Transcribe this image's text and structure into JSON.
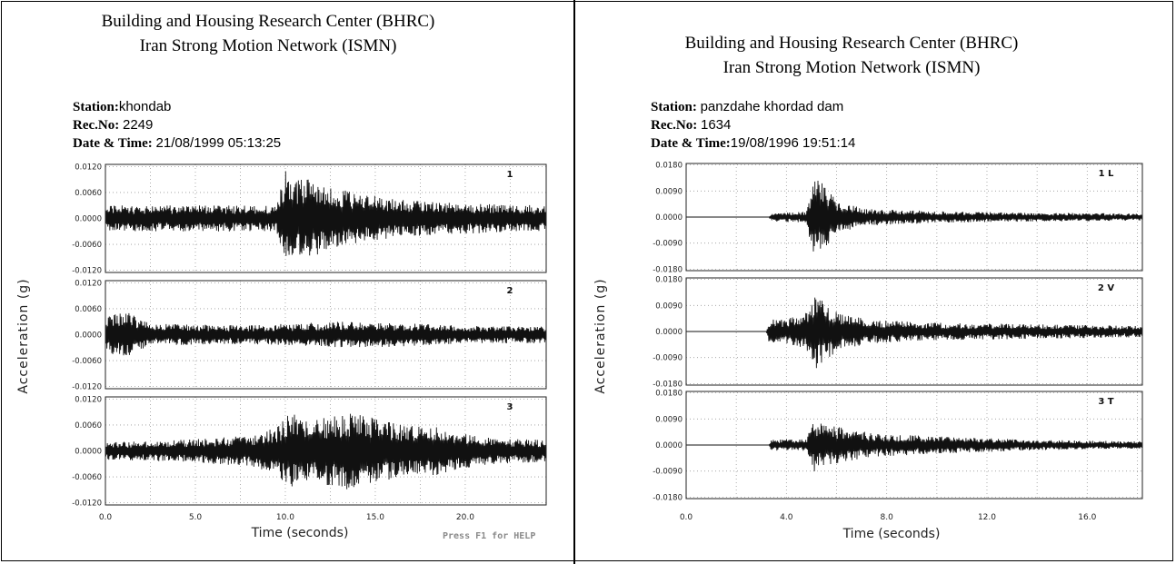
{
  "left": {
    "title_line1": "Building and Housing Research Center (BHRC)",
    "title_line2": "Iran Strong Motion Network (ISMN)",
    "station_label": "Station:",
    "station_value": "khondab",
    "recno_label": "Rec.No:",
    "recno_value": "2249",
    "datetime_label": "Date & Time:",
    "datetime_value": "21/08/1999  05:13:25",
    "help_text": "Press F1 for HELP"
  },
  "right": {
    "title_line1": "Building and Housing Research Center (BHRC)",
    "title_line2": "Iran Strong Motion Network (ISMN)",
    "station_label": "Station:",
    "station_value": "panzdahe khordad dam",
    "recno_label": "Rec.No:",
    "recno_value": "1634",
    "datetime_label": "Date & Time:",
    "datetime_value": "19/08/1996  19:51:14"
  },
  "chart_data": [
    {
      "type": "line",
      "xlabel": "Time (seconds)",
      "ylabel": "Acceleration (g)",
      "xlim": [
        0,
        24.5
      ],
      "xticks": [
        "0.0",
        "5.0",
        "10.0",
        "15.0",
        "20.0"
      ],
      "xtick_values": [
        0,
        5,
        10,
        15,
        20
      ],
      "yticks": [
        "0.0120",
        "0.0060",
        "0.0000",
        "-0.0060",
        "-0.0120"
      ],
      "ylim": [
        -0.0125,
        0.0125
      ],
      "grid": true,
      "series": [
        {
          "name": "1",
          "envelope": [
            [
              0,
              0.003
            ],
            [
              3,
              0.003
            ],
            [
              8,
              0.003
            ],
            [
              9.5,
              0.003
            ],
            [
              10,
              0.011
            ],
            [
              10.5,
              0.009
            ],
            [
              11.5,
              0.009
            ],
            [
              12.5,
              0.007
            ],
            [
              14,
              0.006
            ],
            [
              16,
              0.0045
            ],
            [
              20,
              0.0035
            ],
            [
              24.5,
              0.003
            ]
          ]
        },
        {
          "name": "2",
          "envelope": [
            [
              0,
              0.004
            ],
            [
              0.5,
              0.005
            ],
            [
              1.3,
              0.005
            ],
            [
              2.5,
              0.0025
            ],
            [
              8,
              0.0022
            ],
            [
              10,
              0.0025
            ],
            [
              13,
              0.003
            ],
            [
              16,
              0.0028
            ],
            [
              20,
              0.002
            ],
            [
              24.5,
              0.002
            ]
          ]
        },
        {
          "name": "3",
          "envelope": [
            [
              0,
              0.002
            ],
            [
              4,
              0.0025
            ],
            [
              8,
              0.0035
            ],
            [
              9.5,
              0.0055
            ],
            [
              10.3,
              0.009
            ],
            [
              11,
              0.007
            ],
            [
              12.5,
              0.008
            ],
            [
              13.5,
              0.009
            ],
            [
              15,
              0.0075
            ],
            [
              16.5,
              0.006
            ],
            [
              18,
              0.006
            ],
            [
              20,
              0.004
            ],
            [
              22,
              0.003
            ],
            [
              24.5,
              0.0025
            ]
          ]
        }
      ]
    },
    {
      "type": "line",
      "xlabel": "Time (seconds)",
      "ylabel": "Acceleration (g)",
      "xlim": [
        0,
        18.2
      ],
      "xticks": [
        "0.0",
        "4.0",
        "8.0",
        "12.0",
        "16.0"
      ],
      "xtick_values": [
        0,
        4,
        8,
        12,
        16
      ],
      "yticks": [
        "0.0180",
        "0.0090",
        "0.0000",
        "-0.0090",
        "-0.0180"
      ],
      "ylim": [
        -0.0185,
        0.0185
      ],
      "grid": true,
      "series": [
        {
          "name": "1 L",
          "envelope": [
            [
              0,
              0
            ],
            [
              3.3,
              0
            ],
            [
              3.4,
              0.0015
            ],
            [
              4.8,
              0.002
            ],
            [
              5.1,
              0.016
            ],
            [
              5.4,
              0.012
            ],
            [
              6,
              0.006
            ],
            [
              7,
              0.003
            ],
            [
              10,
              0.002
            ],
            [
              14,
              0.0015
            ],
            [
              18.2,
              0.0012
            ]
          ]
        },
        {
          "name": "2 V",
          "envelope": [
            [
              0,
              0
            ],
            [
              3.2,
              0
            ],
            [
              3.3,
              0.004
            ],
            [
              4.4,
              0.005
            ],
            [
              4.9,
              0.007
            ],
            [
              5.2,
              0.013
            ],
            [
              5.6,
              0.01
            ],
            [
              6.2,
              0.006
            ],
            [
              7.5,
              0.004
            ],
            [
              10,
              0.003
            ],
            [
              14,
              0.0025
            ],
            [
              18.2,
              0.002
            ]
          ]
        },
        {
          "name": "3 T",
          "envelope": [
            [
              0,
              0
            ],
            [
              3.3,
              0
            ],
            [
              3.4,
              0.002
            ],
            [
              4.8,
              0.002
            ],
            [
              5.1,
              0.0095
            ],
            [
              5.5,
              0.007
            ],
            [
              6.2,
              0.006
            ],
            [
              7.5,
              0.004
            ],
            [
              10,
              0.003
            ],
            [
              14,
              0.0018
            ],
            [
              18.2,
              0.0012
            ]
          ]
        }
      ]
    }
  ]
}
